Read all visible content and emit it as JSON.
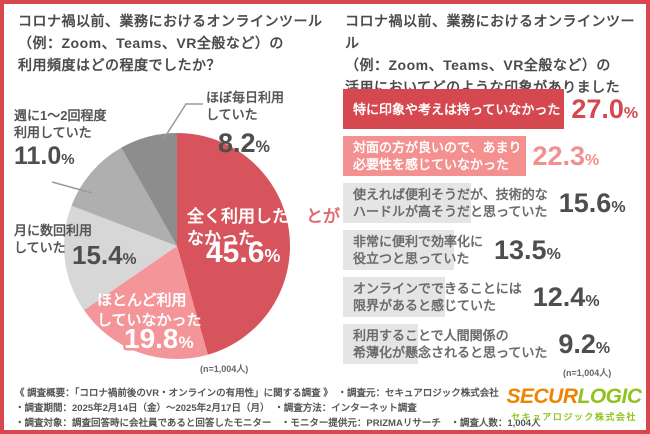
{
  "ui": {
    "percent_sign": "%"
  },
  "colors": {
    "accent_red": "#D8474D",
    "bar_red": "#D6484F",
    "bar_pink": "#F4908F",
    "bar_gray": "#E5E5E5",
    "pie_red": "#D7545C",
    "pie_pink": "#F49599",
    "pie_gray_light": "#D7D7D7",
    "pie_gray_mid": "#AFAFAF",
    "pie_gray_dark": "#8D8D8D",
    "logo_orange": "#F08300",
    "logo_green": "#8FC31F"
  },
  "chart_data": [
    {
      "type": "pie",
      "title": "コロナ禍以前、業務におけるオンラインツール（例：Zoom、Teams、VR全般など）の利用頻度はどの程度でしたか？",
      "title_lines": [
        "コロナ禍以前、業務におけるオンラインツール",
        "（例：Zoom、Teams、VR全般など）の",
        "利用頻度はどの程度でしたか？"
      ],
      "slices": [
        {
          "label": "全く利用したことがなかった",
          "value": 45.6,
          "pct": "45.6",
          "color": "#D7545C"
        },
        {
          "label": "ほとんど利用していなかった",
          "value": 19.8,
          "pct": "19.8",
          "color": "#F49599"
        },
        {
          "label": "月に数回利用していた",
          "value": 15.4,
          "pct": "15.4",
          "color": "#D7D7D7"
        },
        {
          "label": "週に1〜2回程度利用していた",
          "value": 11.0,
          "pct": "11.0",
          "color": "#AFAFAF"
        },
        {
          "label": "ほぼ毎日利用していた",
          "value": 8.2,
          "pct": "8.2",
          "color": "#8D8D8D"
        }
      ],
      "callouts": {
        "never": {
          "l1a": "全く利用したこ",
          "l1b": "とが",
          "l2": "なかった"
        },
        "rarely": {
          "l1": "ほとんど利用",
          "l2": "していなかった"
        },
        "monthly": {
          "l1": "月に数回利用",
          "l2": "していた"
        },
        "weekly": {
          "l1": "週に1〜2回程度",
          "l2": "利用していた"
        },
        "daily": {
          "l1": "ほぼ毎日利用",
          "l2": "していた"
        }
      },
      "n_label": "(n=1,004人)"
    },
    {
      "type": "bar",
      "title": "コロナ禍以前、業務におけるオンラインツール（例：Zoom、Teams、VR全般など）の活用においてどのような印象がありましたか？",
      "title_lines": [
        "コロナ禍以前、業務におけるオンラインツール",
        "（例：Zoom、Teams、VR全般など）の",
        "活用においてどのような印象がありましたか？"
      ],
      "rows": [
        {
          "lines": [
            "特に印象や考えは持っていなかった"
          ],
          "value": 27.0,
          "pct": "27.0",
          "style": "red"
        },
        {
          "lines": [
            "対面の方が良いので、あまり",
            "必要性を感じていなかった"
          ],
          "value": 22.3,
          "pct": "22.3",
          "style": "pink"
        },
        {
          "lines": [
            "使えれば便利そうだが、技術的な",
            "ハードルが高そうだと思っていた"
          ],
          "value": 15.6,
          "pct": "15.6",
          "style": "gray"
        },
        {
          "lines": [
            "非常に便利で効率化に",
            "役立つと思っていた"
          ],
          "value": 13.5,
          "pct": "13.5",
          "style": "gray"
        },
        {
          "lines": [
            "オンラインでできることには",
            "限界があると感じていた"
          ],
          "value": 12.4,
          "pct": "12.4",
          "style": "gray"
        },
        {
          "lines": [
            "利用することで人間関係の",
            "希薄化が懸念されると思っていた"
          ],
          "value": 9.2,
          "pct": "9.2",
          "style": "gray"
        }
      ],
      "xlim": [
        0,
        30
      ],
      "n_label": "(n=1,004人)"
    }
  ],
  "footer": {
    "lines": [
      "《 調査概要：「コロナ禍前後のVR・オンラインの有用性」に関する調査 》　・調査元：セキュアロジック株式会社",
      "・調査期間：2025年2月14日（金）〜2025年2月17日（月）　・調査方法：インターネット調査",
      "・調査対象：調査回答時に会社員であると回答したモニター　・モニター提供元：PRIZMAリサーチ　・調査人数：1,004人"
    ]
  },
  "logo": {
    "main_part1": "SECUR",
    "main_part2": "LOGIC",
    "subtitle": "セキュアロジック株式会社"
  }
}
